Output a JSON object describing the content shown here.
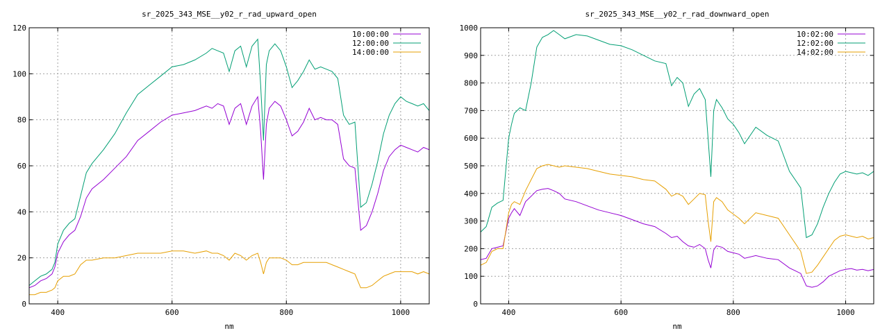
{
  "chart_data": [
    {
      "type": "line",
      "title": "sr_2025_343_MSE__y02_r_rad_upward_open",
      "xlabel": "nm",
      "ylabel": "",
      "xlim": [
        350,
        1050
      ],
      "ylim": [
        0,
        120
      ],
      "xticks": [
        400,
        600,
        800,
        1000
      ],
      "yticks": [
        0,
        20,
        40,
        60,
        80,
        100,
        120
      ],
      "grid": true,
      "legend": "top-right",
      "series": [
        {
          "name": "10:00:00",
          "color": "#9400d3",
          "x": [
            350,
            360,
            370,
            380,
            390,
            395,
            400,
            410,
            420,
            430,
            440,
            450,
            460,
            480,
            500,
            520,
            540,
            560,
            580,
            600,
            620,
            640,
            660,
            670,
            680,
            690,
            700,
            710,
            720,
            730,
            740,
            750,
            755,
            760,
            765,
            770,
            780,
            790,
            800,
            810,
            820,
            830,
            840,
            850,
            860,
            870,
            880,
            890,
            900,
            910,
            920,
            930,
            940,
            950,
            960,
            970,
            980,
            990,
            1000,
            1010,
            1020,
            1030,
            1040,
            1050
          ],
          "y": [
            7,
            8,
            10,
            11,
            13,
            16,
            22,
            27,
            30,
            32,
            38,
            46,
            50,
            54,
            59,
            64,
            71,
            75,
            79,
            82,
            83,
            84,
            86,
            85,
            87,
            86,
            78,
            85,
            87,
            78,
            86,
            90,
            75,
            54,
            78,
            85,
            88,
            86,
            80,
            73,
            75,
            79,
            85,
            80,
            81,
            80,
            80,
            78,
            63,
            60,
            59,
            32,
            34,
            40,
            48,
            58,
            64,
            67,
            69,
            68,
            67,
            66,
            68,
            67
          ]
        },
        {
          "name": "12:00:00",
          "color": "#009e73",
          "x": [
            350,
            360,
            370,
            380,
            390,
            395,
            400,
            410,
            420,
            430,
            440,
            450,
            460,
            480,
            500,
            520,
            540,
            560,
            580,
            600,
            620,
            640,
            660,
            670,
            680,
            690,
            700,
            710,
            720,
            730,
            740,
            750,
            755,
            760,
            765,
            770,
            780,
            790,
            800,
            810,
            820,
            830,
            840,
            850,
            860,
            870,
            880,
            890,
            900,
            910,
            920,
            930,
            940,
            950,
            960,
            970,
            980,
            990,
            1000,
            1010,
            1020,
            1030,
            1040,
            1050
          ],
          "y": [
            8,
            10,
            12,
            13,
            15,
            18,
            26,
            32,
            35,
            37,
            47,
            57,
            61,
            67,
            74,
            83,
            91,
            95,
            99,
            103,
            104,
            106,
            109,
            111,
            110,
            109,
            101,
            110,
            112,
            103,
            112,
            115,
            95,
            71,
            104,
            110,
            113,
            110,
            103,
            94,
            97,
            101,
            106,
            102,
            103,
            102,
            101,
            98,
            82,
            78,
            79,
            42,
            44,
            52,
            62,
            74,
            82,
            87,
            90,
            88,
            87,
            86,
            87,
            84
          ]
        },
        {
          "name": "14:00:00",
          "color": "#e69f00",
          "x": [
            350,
            360,
            370,
            380,
            390,
            395,
            400,
            410,
            420,
            430,
            440,
            450,
            460,
            480,
            500,
            520,
            540,
            560,
            580,
            600,
            620,
            640,
            660,
            670,
            680,
            690,
            700,
            710,
            720,
            730,
            740,
            750,
            755,
            760,
            765,
            770,
            780,
            790,
            800,
            810,
            820,
            830,
            840,
            850,
            860,
            870,
            880,
            890,
            900,
            910,
            920,
            930,
            940,
            950,
            960,
            970,
            980,
            990,
            1000,
            1010,
            1020,
            1030,
            1040,
            1050
          ],
          "y": [
            4,
            4,
            5,
            5,
            6,
            7,
            10,
            12,
            12,
            13,
            17,
            19,
            19,
            20,
            20,
            21,
            22,
            22,
            22,
            23,
            23,
            22,
            23,
            22,
            22,
            21,
            19,
            22,
            21,
            19,
            21,
            22,
            18,
            13,
            18,
            20,
            20,
            20,
            19,
            17,
            17,
            18,
            18,
            18,
            18,
            18,
            17,
            16,
            15,
            14,
            13,
            7,
            7,
            8,
            10,
            12,
            13,
            14,
            14,
            14,
            14,
            13,
            14,
            13
          ]
        }
      ]
    },
    {
      "type": "line",
      "title": "sr_2025_343_MSE__y02_r_rad_downward_open",
      "xlabel": "nm",
      "ylabel": "",
      "xlim": [
        350,
        1050
      ],
      "ylim": [
        0,
        1000
      ],
      "xticks": [
        400,
        600,
        800,
        1000
      ],
      "yticks": [
        0,
        100,
        200,
        300,
        400,
        500,
        600,
        700,
        800,
        900,
        1000
      ],
      "grid": true,
      "legend": "top-right",
      "series": [
        {
          "name": "10:02:00",
          "color": "#9400d3",
          "x": [
            350,
            360,
            370,
            380,
            390,
            400,
            405,
            410,
            420,
            430,
            440,
            450,
            460,
            470,
            480,
            490,
            500,
            520,
            540,
            560,
            580,
            600,
            620,
            640,
            660,
            680,
            690,
            700,
            710,
            720,
            730,
            740,
            750,
            755,
            760,
            765,
            770,
            780,
            790,
            800,
            810,
            820,
            840,
            860,
            880,
            900,
            910,
            920,
            930,
            940,
            950,
            960,
            970,
            980,
            990,
            1000,
            1010,
            1020,
            1030,
            1040,
            1050
          ],
          "y": [
            160,
            165,
            200,
            205,
            210,
            310,
            330,
            345,
            320,
            370,
            390,
            410,
            415,
            418,
            410,
            400,
            380,
            370,
            355,
            340,
            330,
            320,
            305,
            290,
            280,
            255,
            240,
            245,
            225,
            210,
            205,
            215,
            200,
            160,
            130,
            195,
            210,
            205,
            190,
            185,
            180,
            165,
            175,
            165,
            160,
            130,
            120,
            110,
            65,
            60,
            65,
            80,
            100,
            110,
            120,
            125,
            128,
            122,
            125,
            120,
            125
          ]
        },
        {
          "name": "12:02:00",
          "color": "#009e73",
          "x": [
            350,
            360,
            370,
            380,
            390,
            400,
            405,
            410,
            420,
            430,
            440,
            450,
            460,
            470,
            480,
            490,
            500,
            520,
            540,
            560,
            580,
            600,
            620,
            640,
            660,
            680,
            690,
            700,
            710,
            720,
            730,
            740,
            750,
            755,
            760,
            765,
            770,
            780,
            790,
            800,
            810,
            820,
            840,
            860,
            880,
            900,
            910,
            920,
            930,
            940,
            950,
            960,
            970,
            980,
            990,
            1000,
            1010,
            1020,
            1030,
            1040,
            1050
          ],
          "y": [
            260,
            280,
            350,
            365,
            375,
            600,
            650,
            690,
            710,
            700,
            800,
            930,
            965,
            975,
            990,
            975,
            960,
            975,
            970,
            955,
            940,
            935,
            920,
            900,
            880,
            870,
            790,
            820,
            800,
            715,
            760,
            780,
            740,
            600,
            460,
            700,
            740,
            710,
            670,
            650,
            620,
            580,
            640,
            610,
            590,
            480,
            450,
            420,
            240,
            250,
            290,
            350,
            400,
            440,
            470,
            480,
            475,
            470,
            475,
            465,
            480
          ]
        },
        {
          "name": "14:02:00",
          "color": "#e69f00",
          "x": [
            350,
            360,
            370,
            380,
            390,
            400,
            405,
            410,
            420,
            430,
            440,
            450,
            460,
            470,
            480,
            490,
            500,
            520,
            540,
            560,
            580,
            600,
            620,
            640,
            660,
            680,
            690,
            700,
            710,
            720,
            730,
            740,
            750,
            755,
            760,
            765,
            770,
            780,
            790,
            800,
            810,
            820,
            840,
            860,
            880,
            900,
            910,
            920,
            930,
            940,
            950,
            960,
            970,
            980,
            990,
            1000,
            1010,
            1020,
            1030,
            1040,
            1050
          ],
          "y": [
            140,
            150,
            190,
            200,
            200,
            330,
            360,
            370,
            360,
            410,
            450,
            490,
            500,
            505,
            500,
            495,
            500,
            495,
            490,
            480,
            470,
            465,
            460,
            450,
            445,
            415,
            390,
            400,
            390,
            360,
            380,
            400,
            395,
            300,
            225,
            370,
            385,
            370,
            340,
            325,
            310,
            290,
            330,
            320,
            310,
            250,
            220,
            190,
            110,
            115,
            140,
            170,
            200,
            230,
            245,
            250,
            245,
            240,
            245,
            235,
            240
          ]
        }
      ]
    }
  ]
}
